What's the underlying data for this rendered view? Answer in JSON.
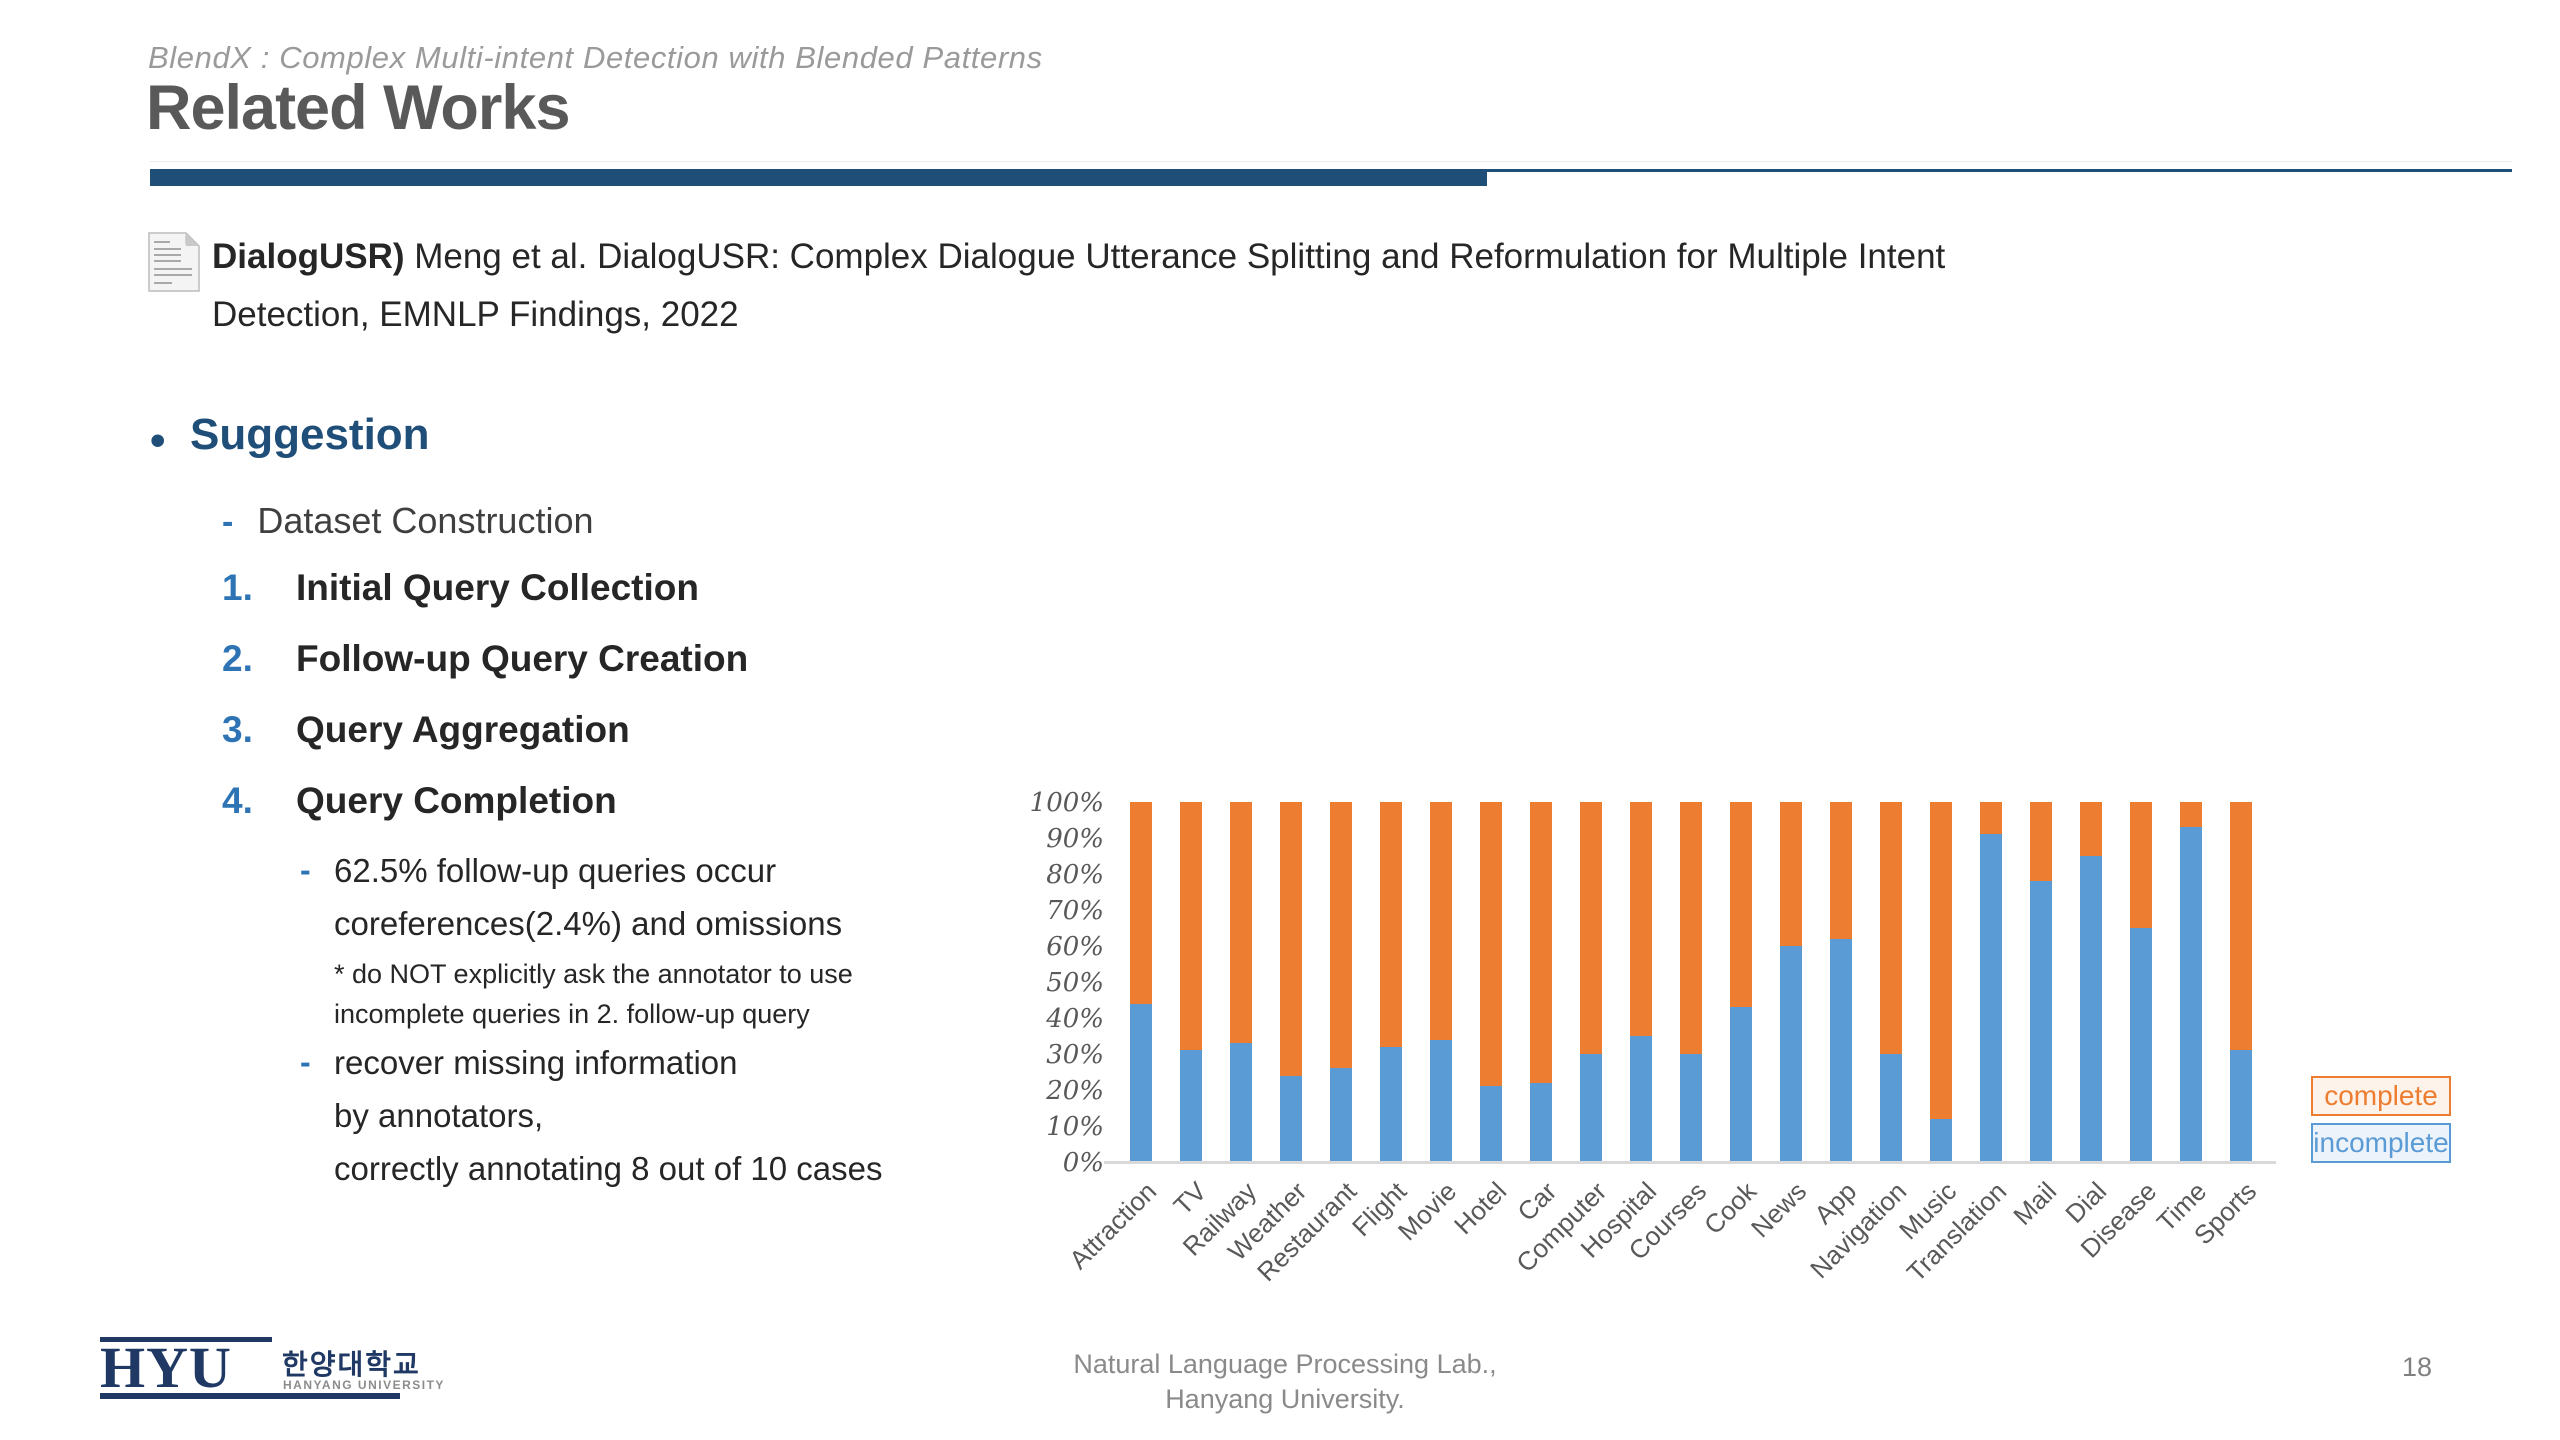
{
  "slide": {
    "kicker": "BlendX : Complex Multi-intent Detection with Blended Patterns",
    "title": "Related Works",
    "page_number": "18"
  },
  "reference": {
    "bold": "DialogUSR)",
    "line1_rest": " Meng et al. DialogUSR: Complex Dialogue Utterance Splitting and Reformulation for Multiple Intent",
    "line2": "Detection, EMNLP Findings, 2022"
  },
  "suggestion": {
    "bullet": "•",
    "heading": "Suggestion",
    "dash": "-",
    "sub_heading": "Dataset Construction",
    "numbered_items": [
      {
        "num": "1.",
        "label": "Initial Query Collection"
      },
      {
        "num": "2.",
        "label": "Follow-up Query Creation"
      },
      {
        "num": "3.",
        "label": "Query Aggregation"
      },
      {
        "num": "4.",
        "label": "Query Completion"
      }
    ],
    "detail_bullets": [
      {
        "dash": "-",
        "lines": [
          "62.5% follow-up queries occur",
          "coreferences(2.4%) and omissions"
        ],
        "note_lines": [
          "* do NOT explicitly ask the annotator to use",
          "incomplete queries in 2. follow-up query"
        ]
      },
      {
        "dash": "-",
        "lines": [
          "recover missing information",
          "by annotators,",
          "correctly annotating 8 out of 10 cases"
        ],
        "note_lines": []
      }
    ]
  },
  "chart_data": {
    "type": "bar",
    "stacked": true,
    "unit": "percent",
    "ylim": [
      0,
      100
    ],
    "grid": false,
    "categories": [
      "Attraction",
      "TV",
      "Railway",
      "Weather",
      "Restaurant",
      "Flight",
      "Movie",
      "Hotel",
      "Car",
      "Computer",
      "Hospital",
      "Courses",
      "Cook",
      "News",
      "App",
      "Navigation",
      "Music",
      "Translation",
      "Mail",
      "Dial",
      "Disease",
      "Time",
      "Sports"
    ],
    "series": [
      {
        "name": "incomplete",
        "color": "#5B9BD5",
        "values": [
          44,
          31,
          33,
          24,
          26,
          32,
          34,
          21,
          22,
          30,
          35,
          30,
          43,
          60,
          62,
          30,
          12,
          91,
          78,
          85,
          65,
          93,
          31
        ]
      },
      {
        "name": "complete",
        "color": "#ED7D31",
        "values": [
          56,
          69,
          67,
          76,
          74,
          68,
          66,
          79,
          78,
          70,
          65,
          70,
          57,
          40,
          38,
          70,
          88,
          9,
          22,
          15,
          35,
          7,
          69
        ]
      }
    ],
    "y_ticks": [
      "100%",
      "90%",
      "80%",
      "70%",
      "60%",
      "50%",
      "40%",
      "30%",
      "20%",
      "10%",
      "0%"
    ],
    "legend_position": "right-bottom",
    "legend": [
      {
        "label": "complete",
        "color": "#ED7D31",
        "bg": "#FDF3EA"
      },
      {
        "label": "incomplete",
        "color": "#5B9BD5",
        "bg": "#EDF3FA"
      }
    ]
  },
  "footer": {
    "lab_line1": "Natural Language Processing Lab.,",
    "lab_line2": "Hanyang University.",
    "logo_acronym": "HYU",
    "logo_korean": "한양대학교",
    "logo_english": "HANYANG UNIVERSITY"
  }
}
